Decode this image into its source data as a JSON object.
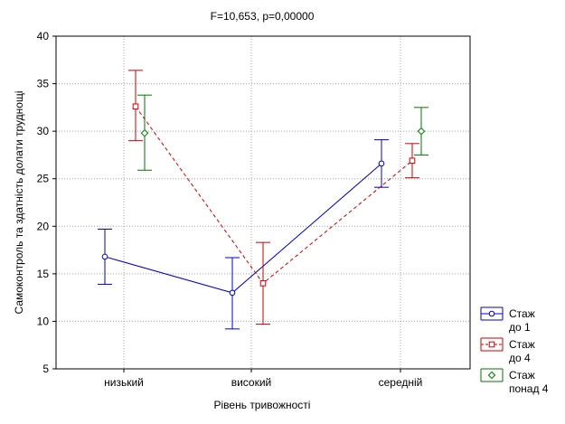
{
  "chart_data": {
    "type": "line",
    "title": "F=10,653, p=0,00000",
    "xlabel": "Рівень тривожності",
    "ylabel": "Самоконтроль та здатність долати труднощі",
    "categories": [
      "низький",
      "високий",
      "середній"
    ],
    "ylim": [
      5,
      40
    ],
    "yticks": [
      5,
      10,
      15,
      20,
      25,
      30,
      35,
      40
    ],
    "grid": true,
    "legend_position": "bottom-right",
    "series": [
      {
        "name": "Стаж до 1",
        "legend_lines": [
          "Стаж",
          "до 1"
        ],
        "color": "#0000cc",
        "line_style": "solid",
        "marker": "circle",
        "values": [
          16.8,
          13.0,
          26.6
        ],
        "lower": [
          13.9,
          9.2,
          24.1
        ],
        "upper": [
          19.7,
          16.7,
          29.1
        ]
      },
      {
        "name": "Стаж до 4",
        "legend_lines": [
          "Стаж",
          "до 4"
        ],
        "color": "#cc0000",
        "line_style": "dashed",
        "marker": "square",
        "values": [
          32.6,
          14.0,
          26.9
        ],
        "lower": [
          29.0,
          9.7,
          25.1
        ],
        "upper": [
          36.4,
          18.3,
          28.7
        ]
      },
      {
        "name": "Стаж понад 4",
        "legend_lines": [
          "Стаж",
          "понад 4"
        ],
        "color": "#007a00",
        "line_style": "none",
        "marker": "diamond",
        "values": [
          29.8,
          null,
          30.0
        ],
        "lower": [
          25.9,
          null,
          27.5
        ],
        "upper": [
          33.8,
          null,
          32.5
        ]
      }
    ]
  }
}
